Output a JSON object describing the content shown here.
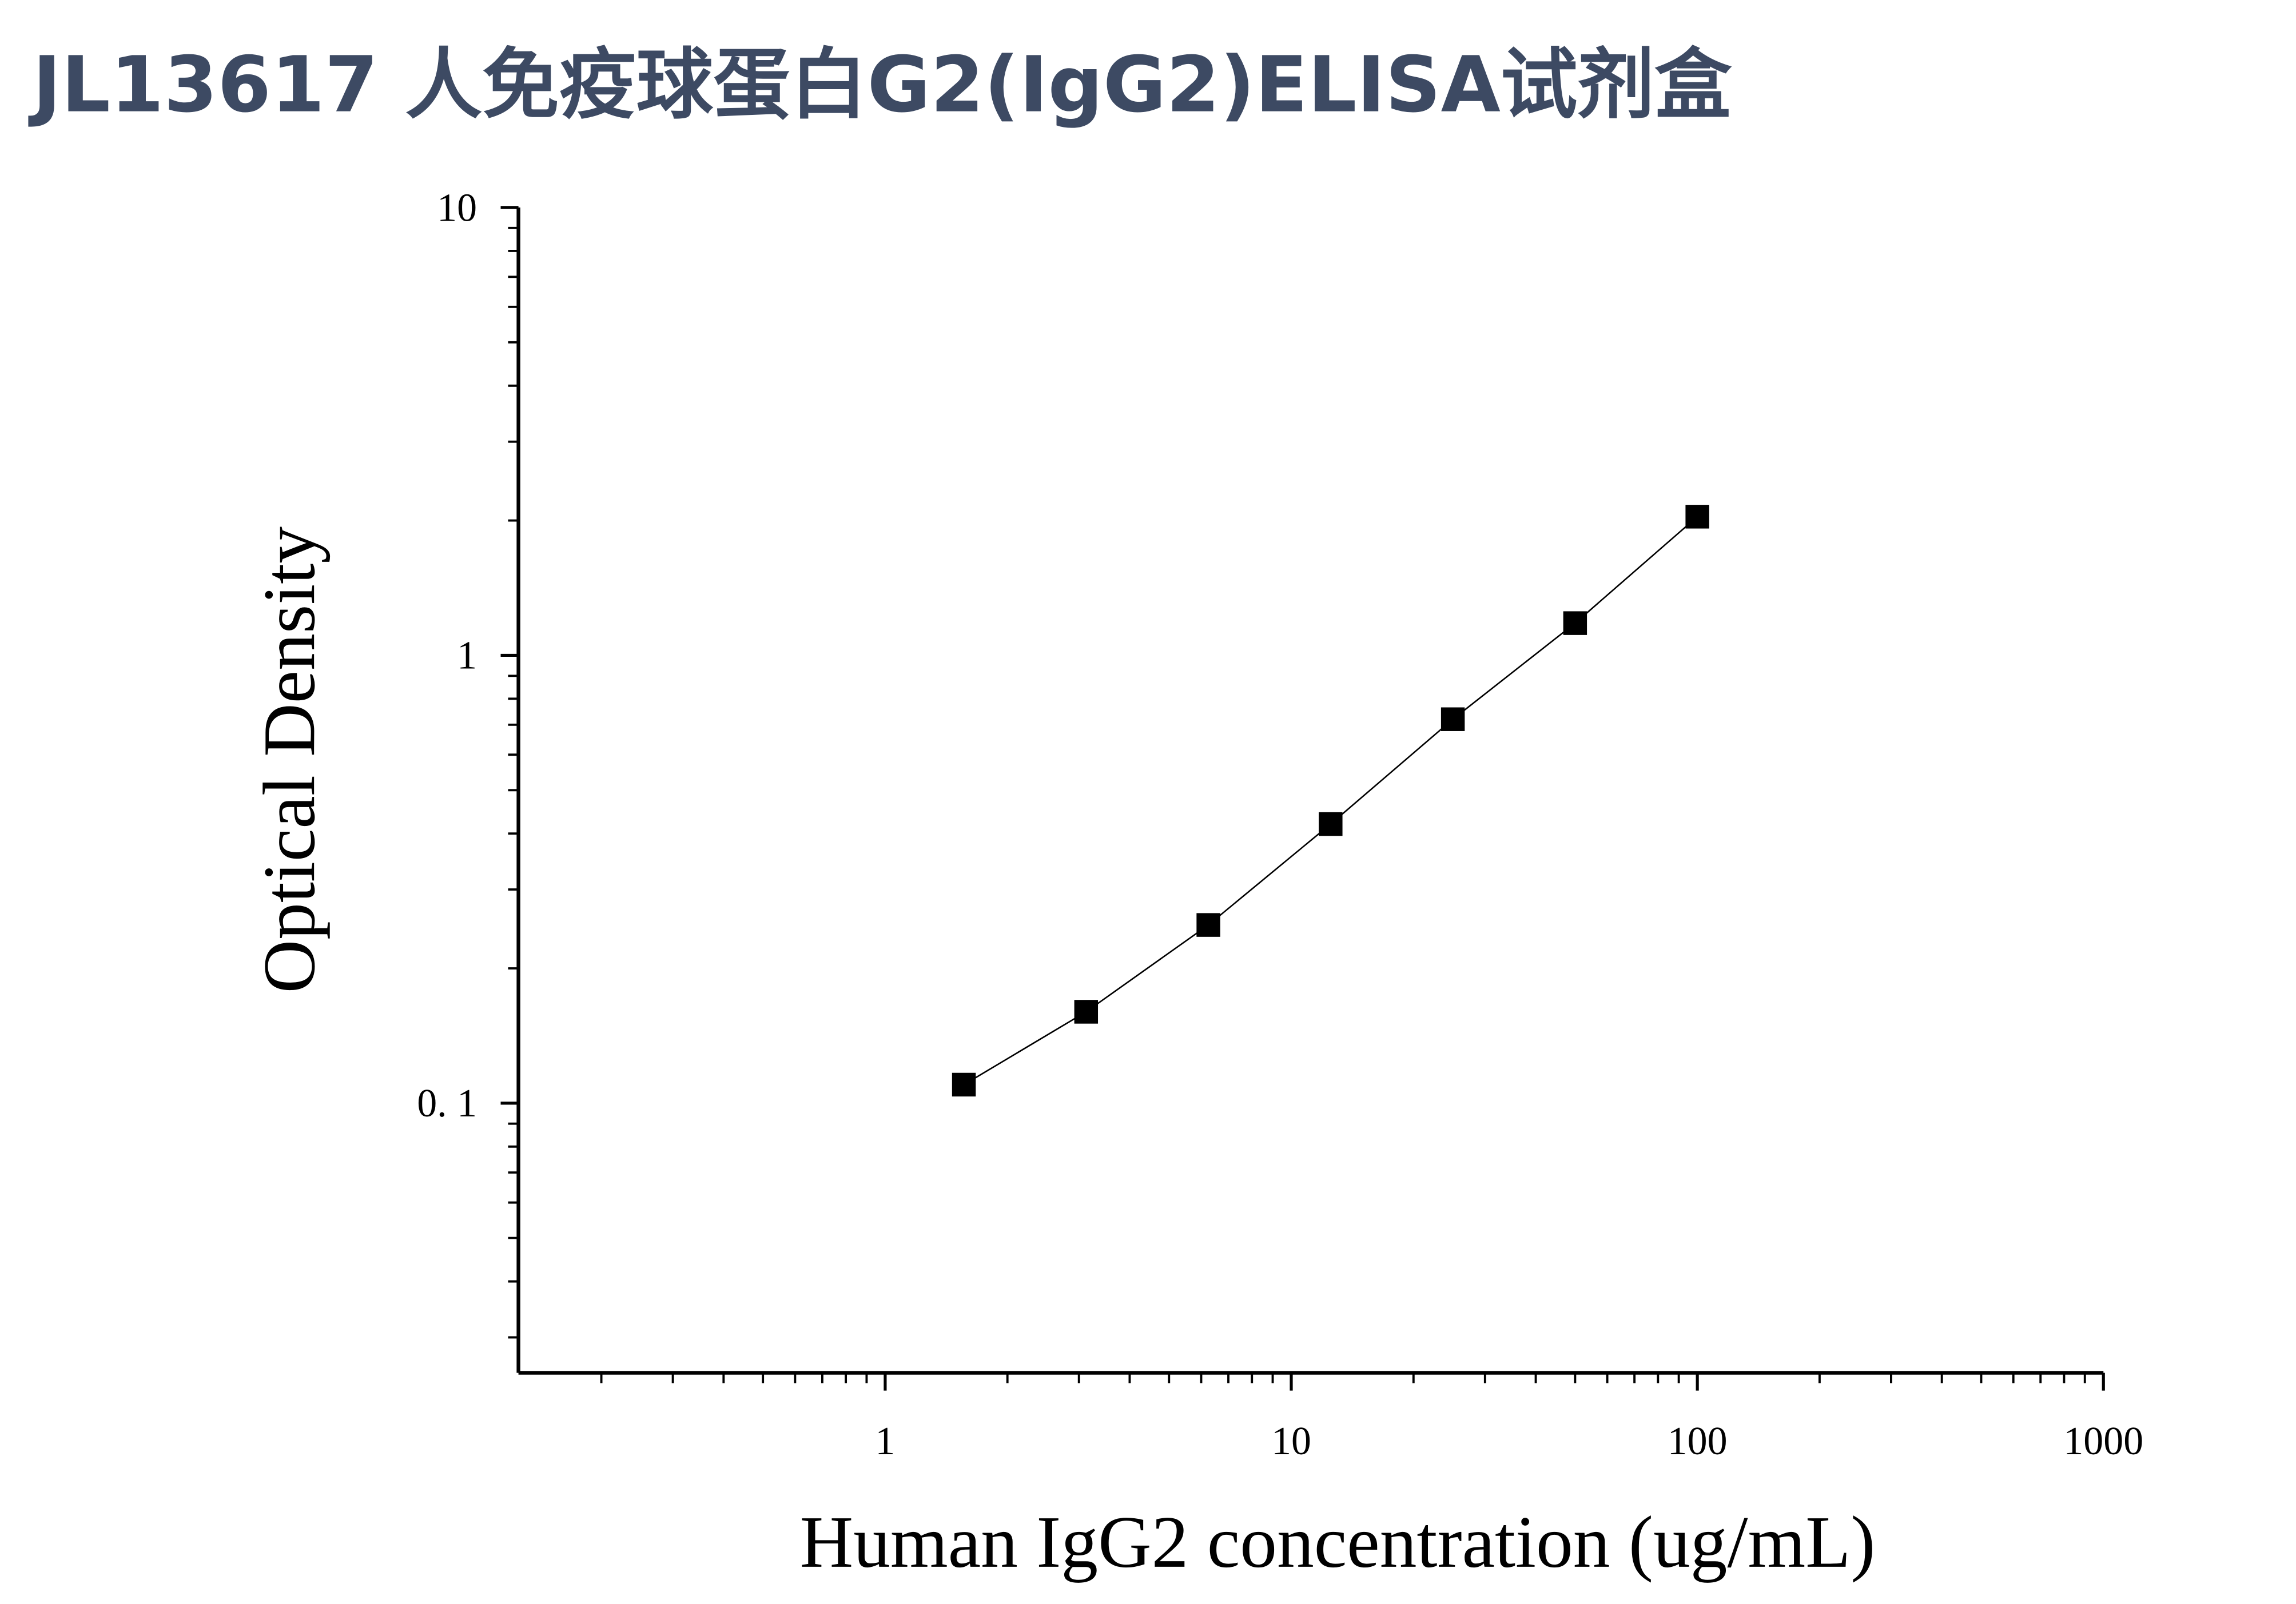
{
  "chart_data": {
    "type": "scatter",
    "title": "JL13617 人免疫球蛋白G2(IgG2)ELISA试剂盒",
    "x_label": "Human IgG2 concentration (ug/mL)",
    "y_label": "Optical Density",
    "x": [
      1.5625,
      3.125,
      6.25,
      12.5,
      25,
      50,
      100
    ],
    "values": [
      0.11,
      0.16,
      0.25,
      0.42,
      0.72,
      1.18,
      2.04
    ],
    "color": "#000000",
    "line": true,
    "xscale": "log",
    "yscale": "log",
    "xlim": [
      0.125,
      1000
    ],
    "ylim": [
      0.025,
      10
    ],
    "xticks": [
      1,
      10,
      100,
      1000
    ],
    "yticks": [
      {
        "value": 0.1,
        "label": "0. 1"
      },
      1,
      10
    ]
  }
}
